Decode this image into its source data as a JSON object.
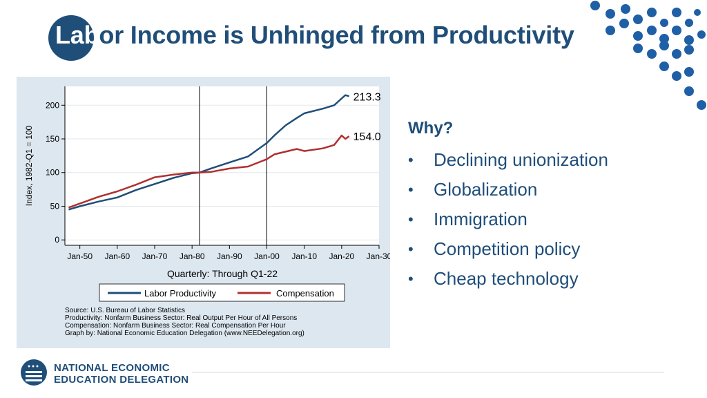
{
  "slide": {
    "title_highlight": "Lab",
    "title_rest": "or Income is Unhinged from Productivity",
    "why_heading": "Why?",
    "reasons": [
      "Declining unionization",
      "Globalization",
      "Immigration",
      "Competition policy",
      "Cheap technology"
    ],
    "bullet": "•",
    "org_line1": "NATIONAL ECONOMIC",
    "org_line2": "EDUCATION DELEGATION",
    "accent_color": "#1f4e79",
    "dot_color": "#1f5fa6"
  },
  "chart_data": {
    "type": "line",
    "ylabel": "Index, 1982-Q1 = 100",
    "xlabel": "Quarterly: Through Q1-22",
    "x_ticks": [
      "Jan-50",
      "Jan-60",
      "Jan-70",
      "Jan-80",
      "Jan-90",
      "Jan-00",
      "Jan-10",
      "Jan-20",
      "Jan-30"
    ],
    "y_ticks": [
      "0",
      "50",
      "100",
      "150",
      "200"
    ],
    "x_range": [
      1946,
      2030
    ],
    "ylim": [
      -8,
      228
    ],
    "vertical_lines": [
      1982,
      2000
    ],
    "legend_position": "bottom",
    "grid": true,
    "series": [
      {
        "name": "Labor Productivity",
        "color": "#1f4e79",
        "end_label": "213.3",
        "x": [
          1947,
          1950,
          1955,
          1960,
          1965,
          1970,
          1975,
          1980,
          1982,
          1985,
          1990,
          1995,
          2000,
          2002,
          2005,
          2008,
          2010,
          2015,
          2018,
          2020,
          2021,
          2022
        ],
        "values": [
          45,
          50,
          57,
          63,
          74,
          83,
          92,
          99,
          100,
          106,
          115,
          124,
          144,
          155,
          170,
          181,
          188,
          195,
          200,
          210,
          215,
          213.3
        ]
      },
      {
        "name": "Compensation",
        "color": "#b03030",
        "end_label": "154.0",
        "x": [
          1947,
          1950,
          1955,
          1960,
          1965,
          1970,
          1975,
          1980,
          1982,
          1985,
          1990,
          1995,
          2000,
          2002,
          2005,
          2008,
          2010,
          2015,
          2018,
          2020,
          2021,
          2022
        ],
        "values": [
          48,
          54,
          64,
          72,
          82,
          93,
          97,
          100,
          100,
          101,
          106,
          109,
          120,
          127,
          131,
          135,
          132,
          136,
          141,
          155,
          150,
          154.0
        ]
      }
    ],
    "source_lines": [
      "Source: U.S. Bureau of Labor Statistics",
      "Productivity: Nonfarm Business Sector: Real Output Per Hour of All Persons",
      "Compensation: Nonfarm Business Sector: Real Compensation Per Hour",
      "Graph by: National Economic Education Delegation (www.NEEDelegation.org)"
    ]
  }
}
